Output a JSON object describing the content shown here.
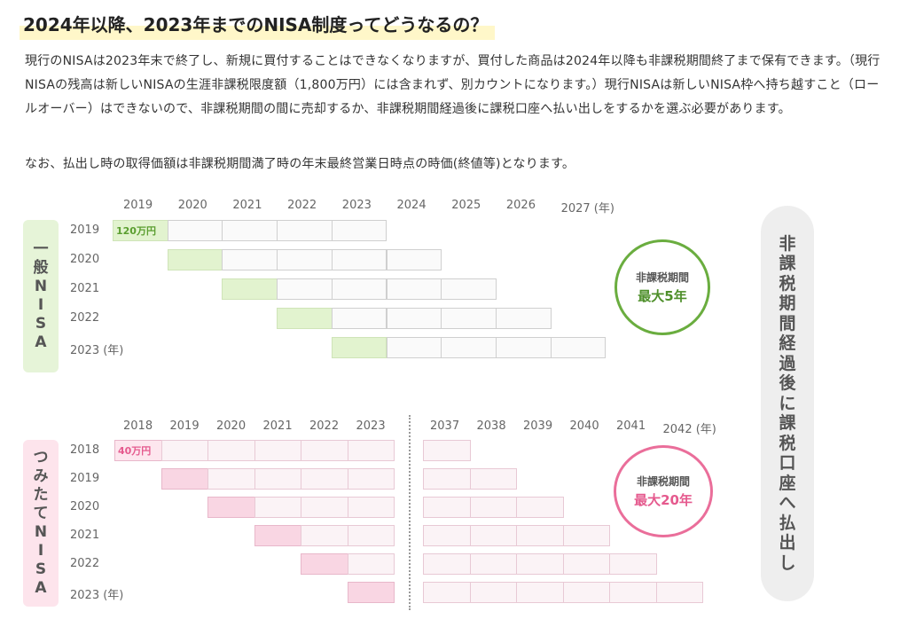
{
  "heading": "2024年以降、2023年までのNISA制度ってどうなるの？",
  "paragraphs": [
    "現行のNISAは2023年末で終了し、新規に買付することはできなくなりますが、買付した商品は2024年以降も非課税期間終了まで保有できます。（現行NISAの残高は新しいNISAの生涯非課税限度額（1,800万円）には含まれず、別カウントになります。）現行NISAは新しいNISA枠へ持ち越すこと（ロールオーバー）はできないので、非課税期間の間に売却するか、非課税期間経過後に課税口座へ払い出しをするかを選ぶ必要があります。",
    "なお、払出し時の取得価額は非課税期間満了時の年末最終営業日時点の時価(終値等)となります。"
  ],
  "diagram": {
    "ippan": {
      "label": "一般NISA",
      "columns": [
        "2019",
        "2020",
        "2021",
        "2022",
        "2023",
        "2024",
        "2025",
        "2026",
        "2027 (年)"
      ],
      "rows": [
        "2019",
        "2020",
        "2021",
        "2022",
        "2023 (年)"
      ],
      "amount": "120万円",
      "badge_line1": "非課税期間",
      "badge_line2": "最大5年",
      "color": "#6aad3f"
    },
    "tsumitate": {
      "label": "つみたてNISA",
      "columns_left": [
        "2018",
        "2019",
        "2020",
        "2021",
        "2022",
        "2023"
      ],
      "columns_right": [
        "2037",
        "2038",
        "2039",
        "2040",
        "2041",
        "2042 (年)"
      ],
      "rows": [
        "2018",
        "2019",
        "2020",
        "2021",
        "2022",
        "2023 (年)"
      ],
      "amount": "40万円",
      "badge_line1": "非課税期間",
      "badge_line2": "最大20年",
      "color": "#ea6e9a"
    },
    "transfer_label": "非課税期間経過後に課税口座へ払出し"
  }
}
